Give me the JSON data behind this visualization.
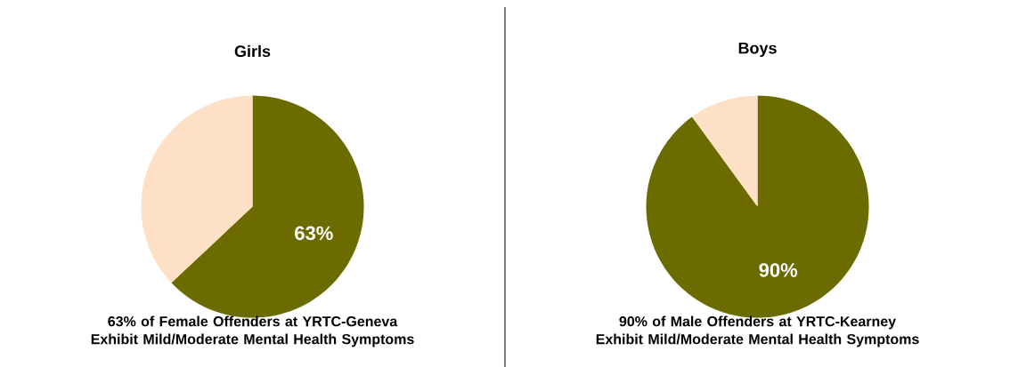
{
  "chart_data": [
    {
      "type": "pie",
      "title": "Girls",
      "categories": [
        null,
        null
      ],
      "values": [
        63,
        37
      ],
      "colors": [
        "#6b6b00",
        "#fde0c5"
      ],
      "value_labels": [
        "63%",
        null
      ],
      "annotations": [
        "63% of Female Offenders at YRTC-Geneva Exhibit Mild/Moderate Mental Health Symptoms"
      ]
    },
    {
      "type": "pie",
      "title": "Boys",
      "categories": [
        null,
        null
      ],
      "values": [
        90,
        10
      ],
      "colors": [
        "#6b6b00",
        "#fde0c5"
      ],
      "value_labels": [
        "90%",
        null
      ],
      "annotations": [
        "90% of Male Offenders at YRTC-Kearney Exhibit Mild/Moderate Mental Health Symptoms"
      ]
    }
  ]
}
